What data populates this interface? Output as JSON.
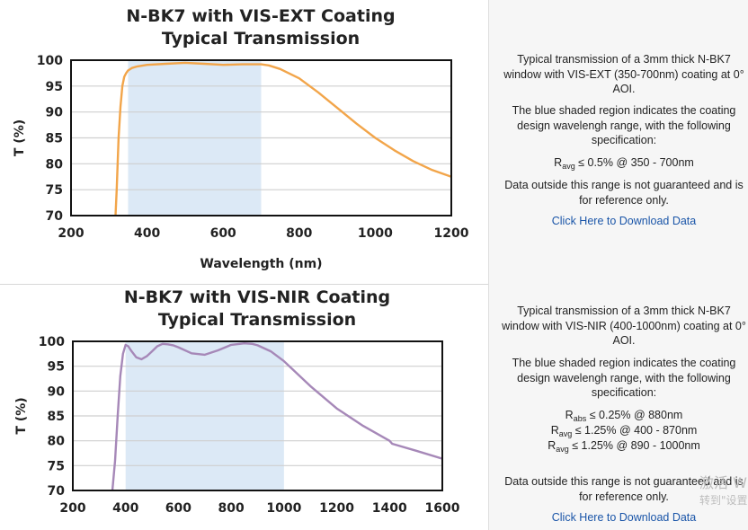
{
  "chart_data": [
    {
      "type": "line",
      "title": "N-BK7 with VIS-EXT Coating",
      "subtitle": "Typical Transmission",
      "xlabel": "Wavelength (nm)",
      "ylabel": "T (%)",
      "xlim": [
        200,
        1200
      ],
      "ylim": [
        70,
        100
      ],
      "xticks": [
        200,
        400,
        600,
        800,
        1000,
        1200
      ],
      "yticks": [
        70,
        75,
        80,
        85,
        90,
        95,
        100
      ],
      "grid": true,
      "shaded_region": [
        350,
        700
      ],
      "line_color": "#f2a54a",
      "shade_color": "#dce9f6",
      "series": [
        {
          "x": [
            317,
            320,
            325,
            330,
            335,
            340,
            345,
            350,
            360,
            375,
            400,
            450,
            500,
            550,
            600,
            650,
            700,
            720,
            750,
            800,
            850,
            900,
            950,
            1000,
            1050,
            1100,
            1150,
            1200
          ],
          "y": [
            70,
            75,
            85,
            91,
            95,
            96.8,
            97.5,
            98,
            98.5,
            98.8,
            99.1,
            99.3,
            99.5,
            99.3,
            99.1,
            99.2,
            99.2,
            99.0,
            98.3,
            96.5,
            93.8,
            90.8,
            87.8,
            85.0,
            82.6,
            80.5,
            78.8,
            77.5
          ]
        }
      ]
    },
    {
      "type": "line",
      "title": "N-BK7 with VIS-NIR Coating",
      "subtitle": "Typical Transmission",
      "xlabel": "",
      "ylabel": "T (%)",
      "xlim": [
        200,
        1600
      ],
      "ylim": [
        70,
        100
      ],
      "xticks": [
        200,
        400,
        600,
        800,
        1000,
        1200,
        1400,
        1600
      ],
      "yticks": [
        70,
        75,
        80,
        85,
        90,
        95,
        100
      ],
      "grid": true,
      "shaded_region": [
        400,
        1000
      ],
      "line_color": "#a688b8",
      "shade_color": "#dce9f6",
      "series": [
        {
          "x": [
            350,
            360,
            370,
            380,
            390,
            400,
            410,
            420,
            440,
            460,
            480,
            500,
            520,
            540,
            560,
            580,
            600,
            650,
            700,
            750,
            800,
            850,
            880,
            900,
            950,
            1000,
            1100,
            1200,
            1300,
            1400,
            1410,
            1500,
            1600
          ],
          "y": [
            70,
            76,
            85,
            93,
            97.5,
            99.3,
            99.0,
            98.2,
            96.8,
            96.4,
            97.0,
            98.0,
            99.0,
            99.5,
            99.4,
            99.2,
            98.8,
            97.6,
            97.3,
            98.2,
            99.3,
            99.6,
            99.5,
            99.2,
            98.0,
            96.0,
            91.0,
            86.5,
            83.0,
            80.0,
            79.4,
            78.0,
            76.4
          ]
        }
      ]
    }
  ],
  "info_top": {
    "para1": "Typical transmission of a 3mm thick N-BK7 window with VIS-EXT (350-700nm) coating at 0° AOI.",
    "para2": "The blue shaded region indicates the coating design wavelengh range, with the following specification:",
    "spec1_sym": "R",
    "spec1_sub": "avg",
    "spec1_rest": " ≤ 0.5% @ 350 - 700nm",
    "para3": "Data outside this range is not guaranteed and is for reference only.",
    "link": "Click Here to Download Data"
  },
  "info_bottom": {
    "para1": "Typical transmission of a 3mm thick N-BK7 window with VIS-NIR (400-1000nm) coating at 0° AOI.",
    "para2": "The blue shaded region indicates the coating design wavelengh range, with the following specification:",
    "spec1_sym": "R",
    "spec1_sub": "abs",
    "spec1_rest": " ≤ 0.25% @ 880nm",
    "spec2_sym": "R",
    "spec2_sub": "avg",
    "spec2_rest": " ≤ 1.25% @ 400 - 870nm",
    "spec3_sym": "R",
    "spec3_sub": "avg",
    "spec3_rest": " ≤ 1.25% @ 890 - 1000nm",
    "para3": "Data outside this range is not guaranteed and is for reference only.",
    "link": "Click Here to Download Data"
  },
  "watermark": {
    "line1": "激活 W",
    "line2": "转到\"设置"
  }
}
